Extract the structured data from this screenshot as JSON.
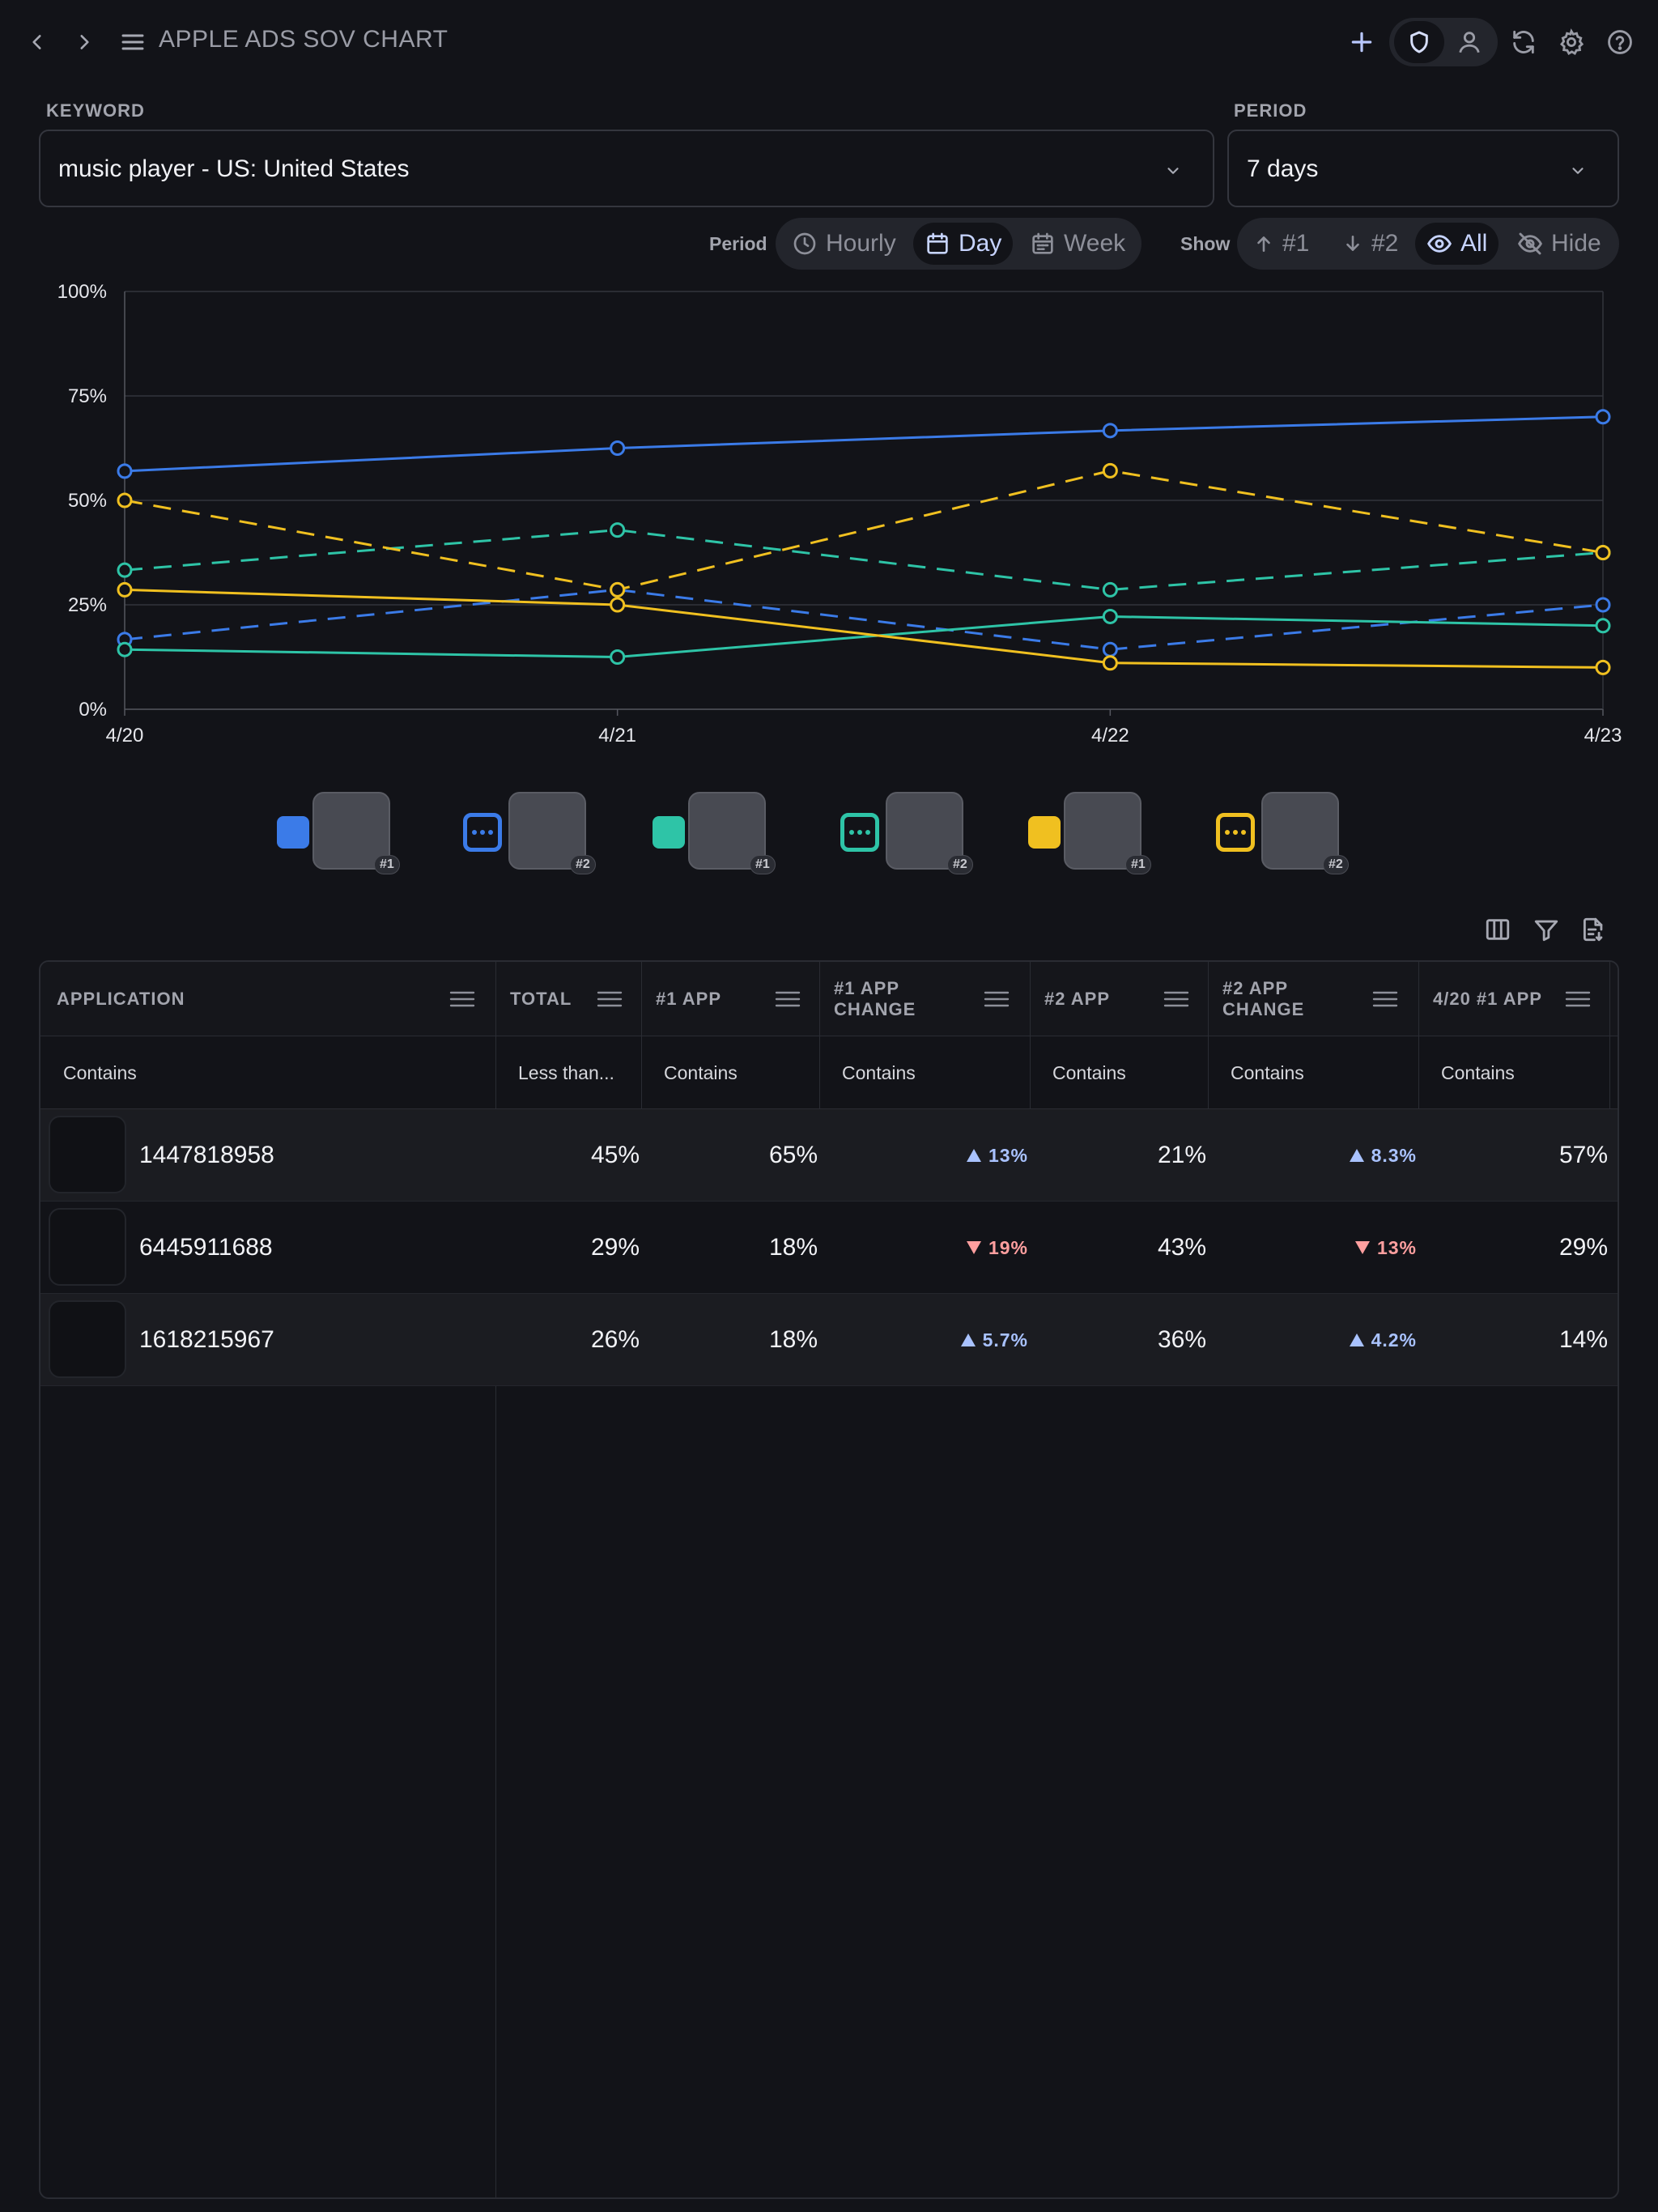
{
  "header": {
    "title": "APPLE ADS SOV CHART",
    "back_icon": "chevron-left-icon",
    "forward_icon": "chevron-right-icon",
    "menu_icon": "hamburger-menu-icon",
    "action_icons": [
      "plus-icon",
      "shield-icon",
      "user-icon",
      "refresh-icon",
      "gear-icon",
      "help-icon"
    ]
  },
  "filters": {
    "keyword_label": "KEYWORD",
    "keyword_value": "music player - US: United States",
    "period_label": "PERIOD",
    "period_value": "7 days"
  },
  "toolbar": {
    "period_label": "Period",
    "period_options": [
      "Hourly",
      "Day",
      "Week"
    ],
    "period_selected": "Day",
    "show_label": "Show",
    "show_options": [
      "#1",
      "#2",
      "All",
      "Hide"
    ],
    "show_selected": "All"
  },
  "chart_data": {
    "type": "line",
    "x": [
      "4/20",
      "4/21",
      "4/22",
      "4/23"
    ],
    "ylim": [
      0,
      100
    ],
    "yticks": [
      "0%",
      "25%",
      "50%",
      "75%",
      "100%"
    ],
    "grid": true,
    "series": [
      {
        "color": "#3b7be8",
        "dash": false,
        "values": [
          57,
          62.5,
          66.7,
          70
        ]
      },
      {
        "color": "#3b7be8",
        "dash": true,
        "values": [
          16.7,
          28.6,
          14.3,
          25
        ]
      },
      {
        "color": "#2ec4a7",
        "dash": false,
        "values": [
          14.3,
          12.5,
          22.2,
          20
        ]
      },
      {
        "color": "#2ec4a7",
        "dash": true,
        "values": [
          33.3,
          42.9,
          28.6,
          37.5
        ]
      },
      {
        "color": "#f0c020",
        "dash": false,
        "values": [
          28.6,
          25,
          11.1,
          10
        ]
      },
      {
        "color": "#f0c020",
        "dash": true,
        "values": [
          50,
          28.6,
          57.1,
          37.5
        ]
      }
    ]
  },
  "legend": {
    "items": [
      {
        "color": "#3b7be8",
        "style": "solid",
        "badge": "#1"
      },
      {
        "color": "#3b7be8",
        "style": "dotted",
        "badge": "#2"
      },
      {
        "color": "#2ec4a7",
        "style": "solid",
        "badge": "#1"
      },
      {
        "color": "#2ec4a7",
        "style": "dotted",
        "badge": "#2"
      },
      {
        "color": "#f0c020",
        "style": "solid",
        "badge": "#1"
      },
      {
        "color": "#f0c020",
        "style": "dotted",
        "badge": "#2"
      }
    ]
  },
  "table_tools": [
    "columns-icon",
    "filter-icon",
    "export-icon"
  ],
  "table": {
    "columns": [
      "APPLICATION",
      "TOTAL",
      "#1 APP",
      "#1 APP\nCHANGE",
      "#2 APP",
      "#2 APP\nCHANGE",
      "4/20 #1 APP"
    ],
    "filters": [
      "Contains",
      "Less than...",
      "Contains",
      "Contains",
      "Contains",
      "Contains",
      "Contains"
    ],
    "rows": [
      {
        "app_id": "1447818958",
        "total": "45%",
        "app1": "65%",
        "app1_change": {
          "dir": "up",
          "value": "13%"
        },
        "app2": "21%",
        "app2_change": {
          "dir": "up",
          "value": "8.3%"
        },
        "d420_app1": "57%"
      },
      {
        "app_id": "6445911688",
        "total": "29%",
        "app1": "18%",
        "app1_change": {
          "dir": "down",
          "value": "19%"
        },
        "app2": "43%",
        "app2_change": {
          "dir": "down",
          "value": "13%"
        },
        "d420_app1": "29%"
      },
      {
        "app_id": "1618215967",
        "total": "26%",
        "app1": "18%",
        "app1_change": {
          "dir": "up",
          "value": "5.7%"
        },
        "app2": "36%",
        "app2_change": {
          "dir": "up",
          "value": "4.2%"
        },
        "d420_app1": "14%"
      }
    ]
  }
}
